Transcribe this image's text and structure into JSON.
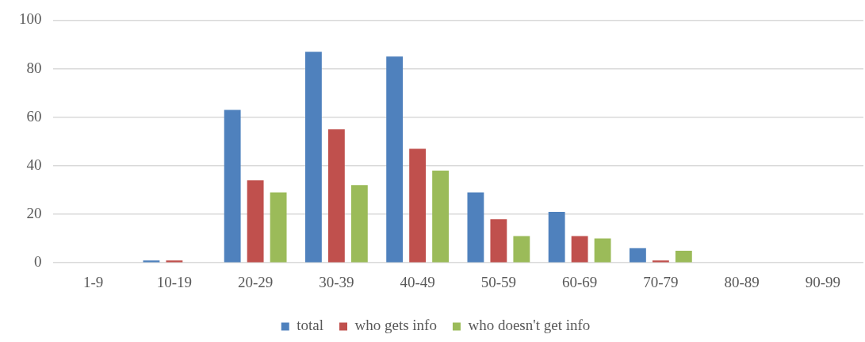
{
  "chart_data": {
    "type": "bar",
    "categories": [
      "1-9",
      "10-19",
      "20-29",
      "30-39",
      "40-49",
      "50-59",
      "60-69",
      "70-79",
      "80-89",
      "90-99"
    ],
    "series": [
      {
        "name": "total",
        "color": "#4f81bd",
        "values": [
          0,
          1,
          63,
          87,
          85,
          29,
          21,
          6,
          0,
          0
        ]
      },
      {
        "name": "who gets info",
        "color": "#c0504d",
        "values": [
          0,
          1,
          34,
          55,
          47,
          18,
          11,
          1,
          0,
          0
        ]
      },
      {
        "name": "who doesn't get info",
        "color": "#9bbb59",
        "values": [
          0,
          0,
          29,
          32,
          38,
          11,
          10,
          5,
          0,
          0
        ]
      }
    ],
    "ylim": [
      0,
      100
    ],
    "yticks": [
      0,
      20,
      40,
      60,
      80,
      100
    ],
    "grid": "y",
    "legend": "bottom"
  }
}
